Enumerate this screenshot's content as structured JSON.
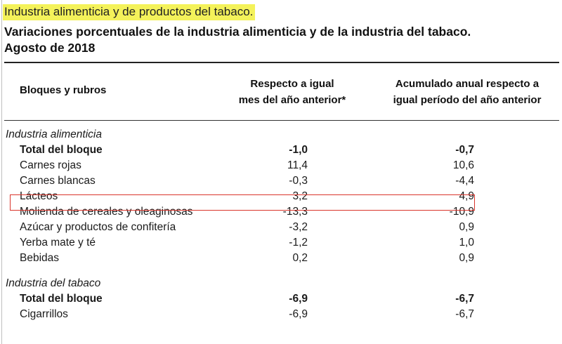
{
  "section_title": "Industria alimenticia y de productos del tabaco.",
  "table_title_line1": "Variaciones porcentuales de la industria alimenticia y de la industria del tabaco.",
  "table_title_line2": "Agosto de 2018",
  "columns": {
    "c1": "Bloques y rubros",
    "c2_line1": "Respecto a igual",
    "c2_line2": "mes del año anterior*",
    "c3_line1": "Acumulado anual respecto a",
    "c3_line2": "igual período del año anterior"
  },
  "groups": [
    {
      "name": "Industria alimenticia",
      "rows": [
        {
          "label": "Total del bloque",
          "monthly": "-1,0",
          "cumulative": "-0,7",
          "bold": true
        },
        {
          "label": "Carnes rojas",
          "monthly": "11,4",
          "cumulative": "10,6"
        },
        {
          "label": "Carnes blancas",
          "monthly": "-0,3",
          "cumulative": "-4,4"
        },
        {
          "label": "Lácteos",
          "monthly": "3,2",
          "cumulative": "4,9",
          "highlighted": true
        },
        {
          "label": "Molienda de cereales y oleaginosas",
          "monthly": "-13,3",
          "cumulative": "-10,9"
        },
        {
          "label": "Azúcar y productos de confitería",
          "monthly": "-3,2",
          "cumulative": "0,9"
        },
        {
          "label": "Yerba mate y té",
          "monthly": "-1,2",
          "cumulative": "1,0"
        },
        {
          "label": "Bebidas",
          "monthly": "0,2",
          "cumulative": "0,9"
        }
      ]
    },
    {
      "name": "Industria del tabaco",
      "rows": [
        {
          "label": "Total del bloque",
          "monthly": "-6,9",
          "cumulative": "-6,7",
          "bold": true
        },
        {
          "label": "Cigarrillos",
          "monthly": "-6,9",
          "cumulative": "-6,7"
        }
      ]
    }
  ],
  "colors": {
    "title_highlight": "#f4f25a",
    "highlight_box": "#d9342b"
  }
}
